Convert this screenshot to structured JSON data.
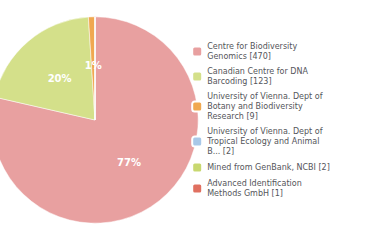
{
  "chart_data": {
    "type": "pie",
    "categories": [
      "Centre for Biodiversity\nGenomics [470]",
      "Canadian Centre for DNA\nBarcoding [123]",
      "University of Vienna. Dept of\nBotany and Biodiversity\nResearch [9]",
      "University of Vienna. Dept of\nTropical Ecology and Animal\nB... [2]",
      "Mined from GenBank, NCBI [2]",
      "Advanced Identification\nMethods GmbH [1]"
    ],
    "values": [
      77,
      20,
      1,
      0,
      0,
      0
    ],
    "value_labels": [
      "77%",
      "20%",
      "1%",
      null,
      null,
      null
    ],
    "colors": [
      "#e8a0a0",
      "#d4e08a",
      "#f0a850",
      "#a8c8e8",
      "#c8d870",
      "#e07060"
    ],
    "data_labels": true,
    "legend": "right"
  }
}
